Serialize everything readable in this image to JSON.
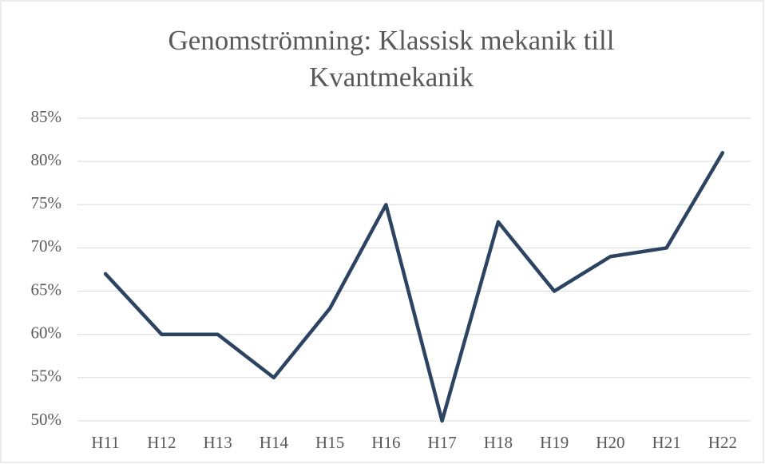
{
  "chart_data": {
    "type": "line",
    "title": "Genomströmning: Klassisk mekanik till Kvantmekanik",
    "categories": [
      "H11",
      "H12",
      "H13",
      "H14",
      "H15",
      "H16",
      "H17",
      "H18",
      "H19",
      "H20",
      "H21",
      "H22"
    ],
    "values": [
      67,
      60,
      60,
      55,
      63,
      75,
      50,
      73,
      65,
      69,
      70,
      81
    ],
    "color": "#2c4362",
    "ylim": [
      50,
      85
    ],
    "yticks": [
      {
        "value": 50,
        "label": "50%"
      },
      {
        "value": 55,
        "label": "55%"
      },
      {
        "value": 60,
        "label": "60%"
      },
      {
        "value": 65,
        "label": "65%"
      },
      {
        "value": 70,
        "label": "70%"
      },
      {
        "value": 75,
        "label": "75%"
      },
      {
        "value": 80,
        "label": "80%"
      },
      {
        "value": 85,
        "label": "85%"
      }
    ],
    "grid": true
  }
}
